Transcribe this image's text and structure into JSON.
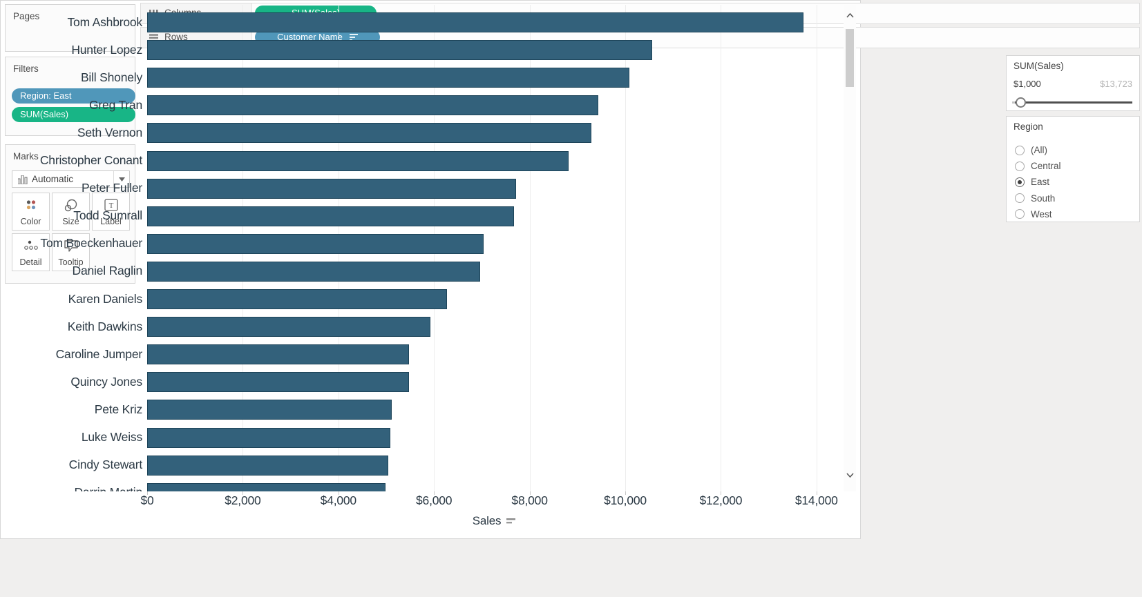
{
  "colors": {
    "window_bg": "#f0efee",
    "measure_pill_green": "#18b586",
    "dimension_pill_blue": "#5097ba",
    "bar_fill": "#33617b",
    "bar_border": "#1d4459",
    "chart_text": "#2c3a45"
  },
  "shelves": {
    "columns_label": "Columns",
    "columns_pill": "SUM(Sales)",
    "rows_label": "Rows",
    "rows_pill": "Customer Name"
  },
  "left_panel": {
    "pages_title": "Pages",
    "filters_title": "Filters",
    "filter_pills": [
      {
        "label": "Region: East",
        "type": "dimension"
      },
      {
        "label": "SUM(Sales)",
        "type": "measure"
      }
    ],
    "marks": {
      "title": "Marks",
      "mark_type": "Automatic",
      "buttons": [
        "Color",
        "Size",
        "Label",
        "Detail",
        "Tooltip"
      ]
    }
  },
  "right_panel": {
    "sales_filter": {
      "title": "SUM(Sales)",
      "min": "$1,000",
      "max": "$13,723"
    },
    "region_filter": {
      "title": "Region",
      "options": [
        "(All)",
        "Central",
        "East",
        "South",
        "West"
      ],
      "selected": "East"
    }
  },
  "chart_data": {
    "type": "bar",
    "orientation": "horizontal",
    "xlabel": "Sales",
    "sort": "descending by SUM(Sales)",
    "categories": [
      "Tom Ashbrook",
      "Hunter Lopez",
      "Bill Shonely",
      "Greg Tran",
      "Seth Vernon",
      "Christopher Conant",
      "Peter Fuller",
      "Todd Sumrall",
      "Tom Boeckenhauer",
      "Daniel Raglin",
      "Karen Daniels",
      "Keith Dawkins",
      "Caroline Jumper",
      "Quincy Jones",
      "Pete Kriz",
      "Luke Weiss",
      "Cindy Stewart",
      "Darrin Martin"
    ],
    "values": [
      13723,
      10570,
      10090,
      9430,
      9290,
      8810,
      7720,
      7670,
      7040,
      6960,
      6275,
      5920,
      5480,
      5470,
      5110,
      5080,
      5045,
      4980
    ],
    "xlim": [
      0,
      14500
    ],
    "x_ticks": [
      0,
      2000,
      4000,
      6000,
      8000,
      10000,
      12000,
      14000
    ],
    "x_tick_labels": [
      "$0",
      "$2,000",
      "$4,000",
      "$6,000",
      "$8,000",
      "$10,000",
      "$12,000",
      "$14,000"
    ],
    "grid": "vertical at every $2,000",
    "last_row_clipped": true
  }
}
